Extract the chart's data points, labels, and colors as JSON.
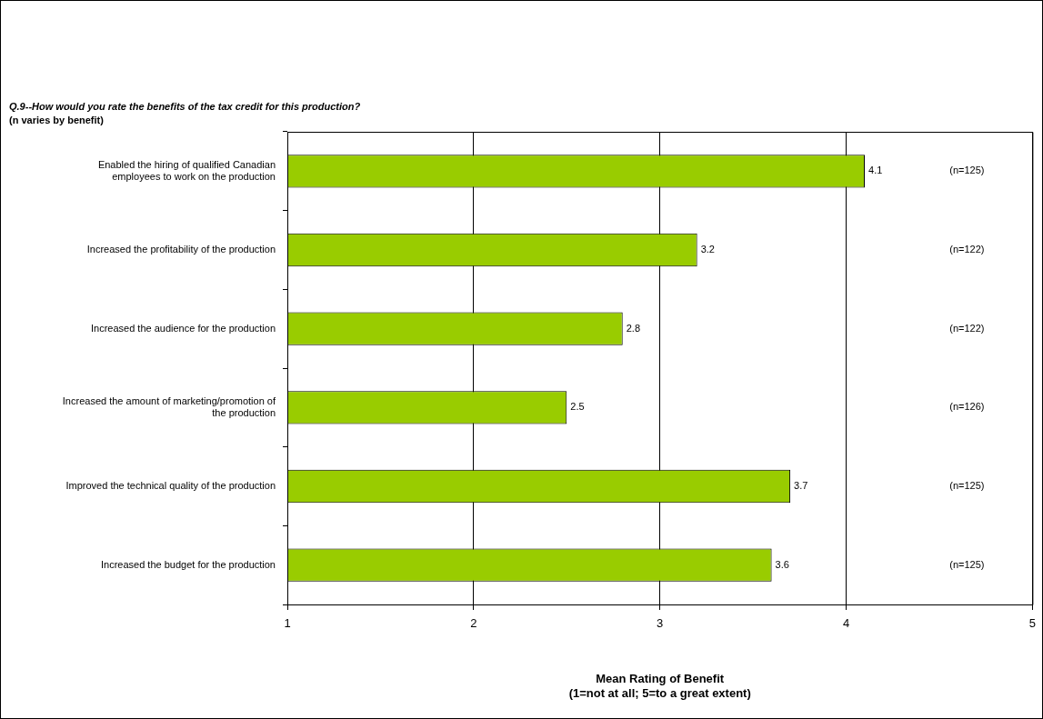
{
  "chart_data": {
    "type": "bar",
    "orientation": "horizontal",
    "title": "Q.9--How would you rate the benefits of the tax credit for this production?",
    "subtitle": "(n varies by benefit)",
    "xlabel": "Mean Rating of Benefit\n(1=not at all; 5=to a great extent)",
    "categories": [
      "Enabled the hiring of qualified Canadian employees to work on the production",
      "Increased the profitability of the production",
      "Increased the audience for the production",
      "Increased the amount of marketing/promotion of the production",
      "Improved the technical quality of the production",
      "Increased the budget for the production"
    ],
    "values": [
      4.1,
      3.2,
      2.8,
      2.5,
      3.7,
      3.6
    ],
    "color": "#99cc00",
    "xlim": [
      1,
      5
    ],
    "xticks": [
      1,
      2,
      3,
      4,
      5
    ],
    "grid": "x",
    "legend": false,
    "data_labels": true,
    "annotations": [
      "(n=125)",
      "(n=122)",
      "(n=122)",
      "(n=126)",
      "(n=125)",
      "(n=125)"
    ]
  }
}
